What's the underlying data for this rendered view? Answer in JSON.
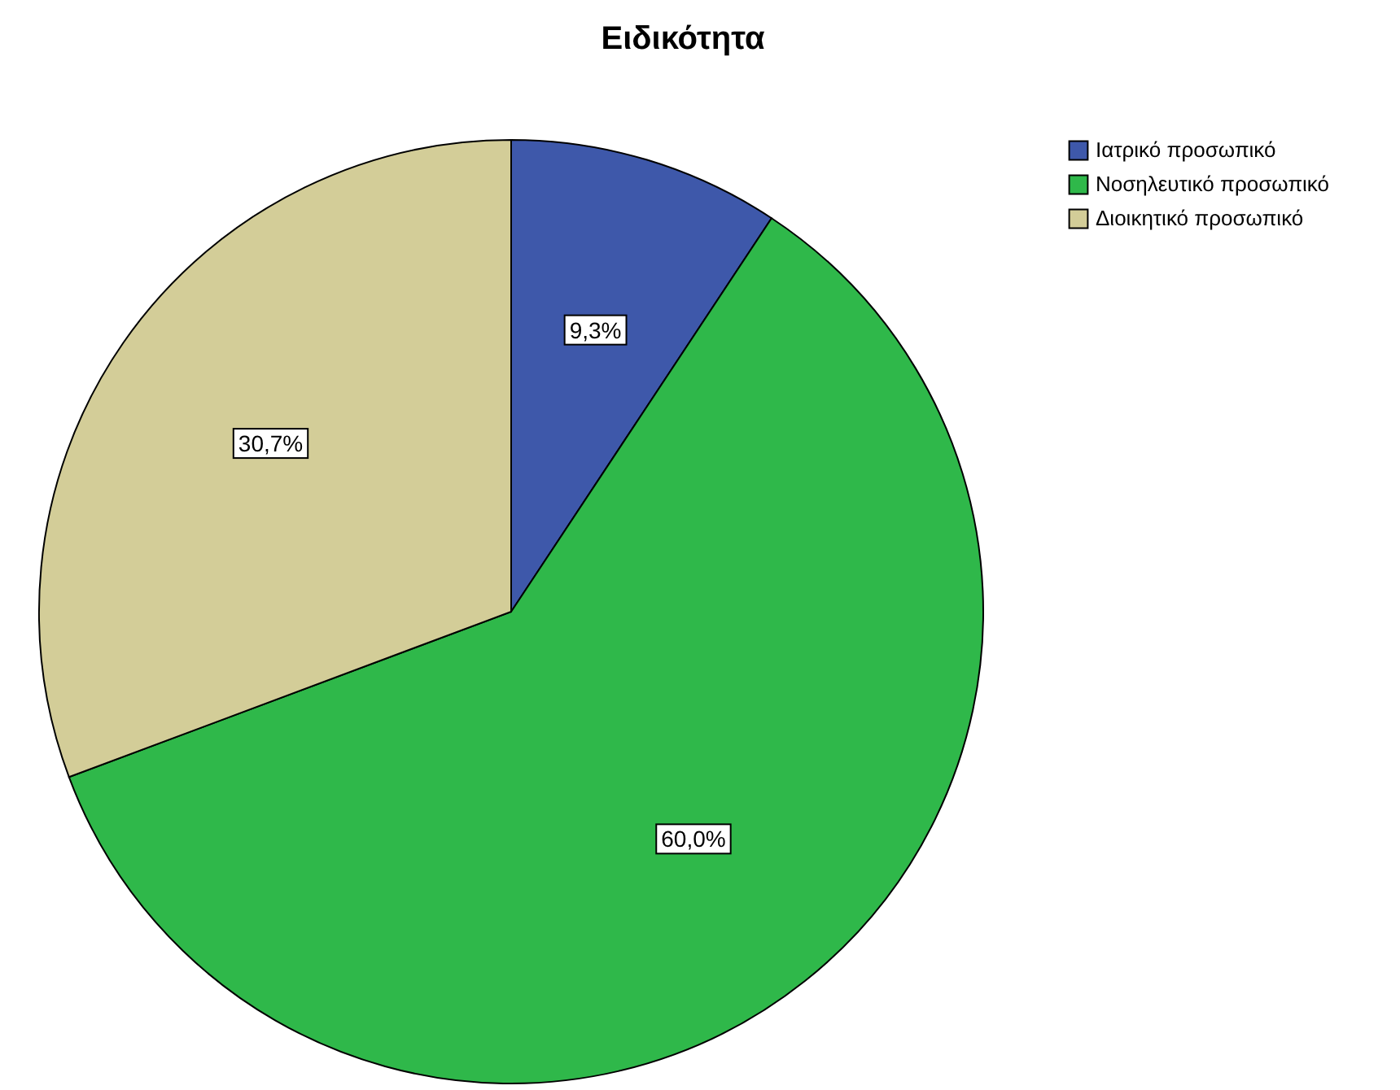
{
  "chart_data": {
    "type": "pie",
    "title": "Ειδικότητα",
    "categories": [
      "Ιατρικό προσωπικό",
      "Νοσηλευτικό προσωπικό",
      "Διοικητικό προσωπικό"
    ],
    "values": [
      9.3,
      60.0,
      30.7
    ],
    "colors": [
      "#3e58aa",
      "#2fb84a",
      "#d3cd98"
    ],
    "value_labels": [
      "9,3%",
      "60,0%",
      "30,7%"
    ],
    "legend": "top right"
  }
}
